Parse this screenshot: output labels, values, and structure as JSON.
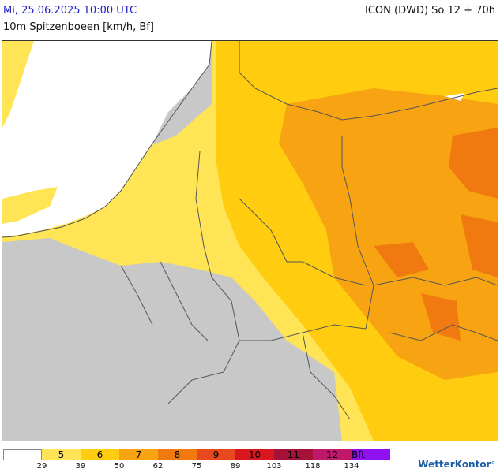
{
  "header": {
    "date_label": "Mi, 25.06.2025 10:00 UTC",
    "model_label": "ICON (DWD) So 12 + 70h",
    "parameter_label": "10m Spitzenboeen [km/h, Bf]"
  },
  "map": {
    "region": "Central Europe",
    "land_color": "#c8c8c8",
    "sea_color": "#ffffff",
    "border_color": "#555555"
  },
  "legend": {
    "classes": [
      {
        "label": "",
        "color": "#ffffff"
      },
      {
        "label": "5",
        "color": "#ffe455"
      },
      {
        "label": "6",
        "color": "#ffcc10"
      },
      {
        "label": "7",
        "color": "#f8a412"
      },
      {
        "label": "8",
        "color": "#f07a10"
      },
      {
        "label": "9",
        "color": "#e8481e"
      },
      {
        "label": "10",
        "color": "#d8181e"
      },
      {
        "label": "11",
        "color": "#a41238"
      },
      {
        "label": "12",
        "color": "#c0186a"
      },
      {
        "label": "Bft",
        "color": "#9010f0"
      }
    ],
    "ticks": [
      "29",
      "39",
      "50",
      "62",
      "75",
      "89",
      "103",
      "118",
      "134"
    ]
  },
  "branding": {
    "logo_text": "WetterKontor",
    "logo_mark": "°"
  }
}
